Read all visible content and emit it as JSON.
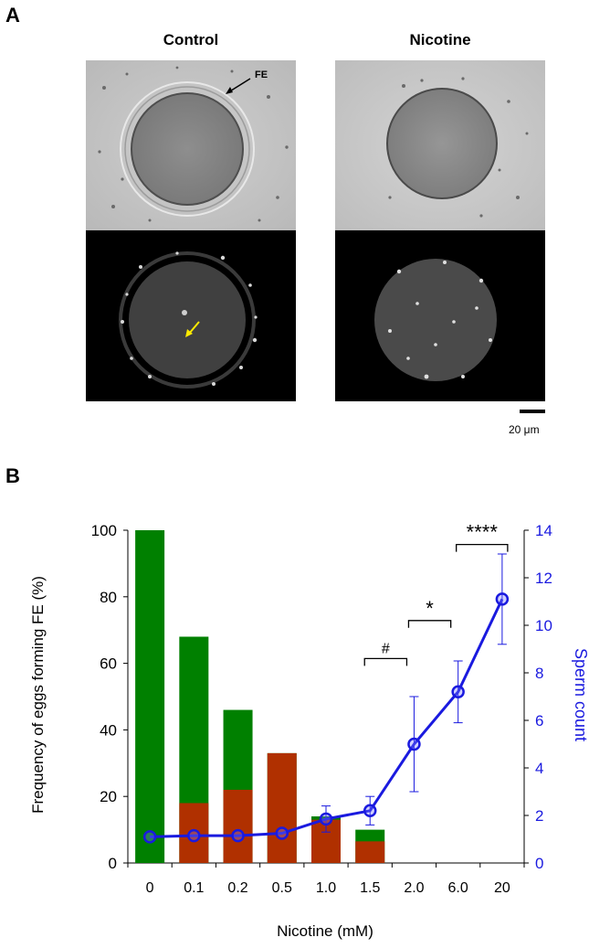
{
  "panel_a": {
    "label": "A",
    "control_title": "Control",
    "nicotine_title": "Nicotine",
    "fe_annotation": "FE",
    "scale_bar_label": "20 μm"
  },
  "panel_b": {
    "label": "B"
  },
  "colors": {
    "green": "#008000",
    "red": "#b03000",
    "blue": "#1a1adf"
  },
  "chart_data": {
    "type": "bar",
    "categories": [
      "0",
      "0.1",
      "0.2",
      "0.5",
      "1.0",
      "1.5",
      "2.0",
      "6.0",
      "20"
    ],
    "xlabel": "Nicotine (mM)",
    "ylabel": "Frequency of eggs forming FE (%)",
    "ylabel_right": "Sperm count",
    "ylim": [
      0,
      100
    ],
    "ylim_right": [
      0,
      14
    ],
    "yticks": [
      0,
      20,
      40,
      60,
      80,
      100
    ],
    "yticks_right": [
      0,
      2,
      4,
      6,
      8,
      10,
      12,
      14
    ],
    "series": [
      {
        "values": [
          100,
          68,
          46,
          33,
          14,
          10,
          null,
          null,
          null
        ]
      },
      {
        "values": [
          0,
          18,
          22,
          33,
          13,
          6.5,
          null,
          null,
          null
        ]
      },
      {
        "values": [
          1.1,
          1.15,
          1.15,
          1.25,
          1.85,
          2.2,
          5.0,
          7.2,
          11.1
        ],
        "errors": [
          0.05,
          0.05,
          0.05,
          0.05,
          0.55,
          0.6,
          2.0,
          1.3,
          1.9
        ]
      }
    ],
    "significance": [
      {
        "from": "1.5",
        "to": "2.0",
        "label": "#"
      },
      {
        "from": "2.0",
        "to": "6.0",
        "label": "*"
      },
      {
        "from": "6.0",
        "to": "20",
        "label": "****"
      }
    ]
  }
}
